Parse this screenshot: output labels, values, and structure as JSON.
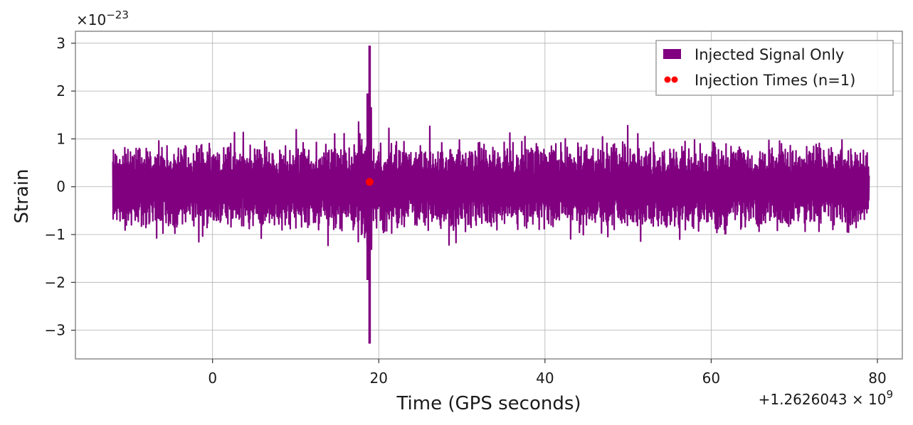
{
  "chart_data": {
    "type": "line",
    "xlabel": "Time (GPS seconds)",
    "ylabel": "Strain",
    "x_offset_label": "+1.2626043 × 10",
    "x_offset_exponent": "9",
    "y_scale_label": "×10",
    "y_scale_exponent": "−23",
    "xlim": [
      -16.5,
      83
    ],
    "ylim": [
      -3.6,
      3.25
    ],
    "x_ticks": [
      0,
      20,
      40,
      60,
      80
    ],
    "x_tick_labels": [
      "0",
      "20",
      "40",
      "60",
      "80"
    ],
    "y_ticks": [
      -3,
      -2,
      -1,
      0,
      1,
      2,
      3
    ],
    "y_tick_labels": [
      "−3",
      "−2",
      "−1",
      "0",
      "1",
      "2",
      "3"
    ],
    "grid": true,
    "legend_position": "top-right",
    "series": [
      {
        "name": "Injected Signal Only",
        "kind": "strain-timeseries",
        "color": "#800080",
        "x_range": [
          -12,
          79
        ],
        "typical_amplitude": [
          -1.0,
          1.0
        ],
        "peak_time": 18.9,
        "peak_max": 2.95,
        "peak_min": -3.28
      },
      {
        "name": "Injection Times (n=1)",
        "kind": "markers",
        "color": "#ff0000",
        "points": [
          {
            "x": 18.9,
            "y": 0.1
          }
        ]
      }
    ],
    "legend": [
      {
        "label": "Injected Signal Only",
        "marker": "patch",
        "color": "#800080"
      },
      {
        "label": "Injection Times (n=1)",
        "marker": "dots",
        "color": "#ff0000"
      }
    ]
  }
}
